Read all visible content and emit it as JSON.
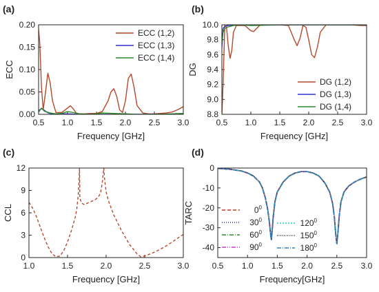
{
  "chart_data": [
    {
      "panel_label": "(a)",
      "type": "line",
      "xlabel": "Frequency [GHz]",
      "ylabel": "ECC",
      "xlim": [
        0.5,
        3.0
      ],
      "ylim": [
        0,
        0.2
      ],
      "xticks": [
        "0.5",
        "1.0",
        "1.5",
        "2.0",
        "2.5",
        "3.0"
      ],
      "yticks": [
        "0.00",
        "0.05",
        "0.10",
        "0.15",
        "0.20"
      ],
      "legend": "top-right",
      "series": [
        {
          "name": "ECC (1,2)",
          "color": "#b5482c",
          "x": [
            0.5,
            0.52,
            0.55,
            0.58,
            0.62,
            0.66,
            0.7,
            0.74,
            0.8,
            0.9,
            1.0,
            1.05,
            1.1,
            1.15,
            1.2,
            1.3,
            1.4,
            1.5,
            1.6,
            1.7,
            1.75,
            1.8,
            1.85,
            1.9,
            1.95,
            2.0,
            2.05,
            2.1,
            2.15,
            2.2,
            2.3,
            2.4,
            2.5,
            2.6,
            2.7,
            2.8,
            2.9,
            3.0
          ],
          "y": [
            0.19,
            0.16,
            0.06,
            0.01,
            0.05,
            0.092,
            0.07,
            0.03,
            0.004,
            0.004,
            0.014,
            0.019,
            0.012,
            0.003,
            0.001,
            0.001,
            0.002,
            0.002,
            0.006,
            0.03,
            0.05,
            0.057,
            0.04,
            0.01,
            0.004,
            0.03,
            0.08,
            0.09,
            0.06,
            0.02,
            0.003,
            0.001,
            0.001,
            0.002,
            0.003,
            0.005,
            0.01,
            0.017
          ]
        },
        {
          "name": "ECC (1,3)",
          "color": "#3030d0",
          "x": [
            0.5,
            0.55,
            0.6,
            0.65,
            0.7,
            0.8,
            1.0,
            1.2,
            1.5,
            2.0,
            2.5,
            3.0
          ],
          "y": [
            0.008,
            0.013,
            0.009,
            0.004,
            0.002,
            0.001,
            0.001,
            0.0,
            0.0,
            0.0,
            0.0,
            0.0
          ]
        },
        {
          "name": "ECC (1,4)",
          "color": "#2a8a2a",
          "x": [
            0.5,
            0.55,
            0.6,
            0.65,
            0.7,
            0.8,
            0.9,
            1.0,
            1.1,
            1.2,
            1.4,
            1.5,
            1.6,
            1.8,
            2.0,
            2.2,
            2.5,
            2.8,
            3.0
          ],
          "y": [
            0.005,
            0.014,
            0.007,
            0.005,
            0.003,
            0.001,
            0.002,
            0.006,
            0.004,
            0.001,
            0.0,
            0.001,
            0.003,
            0.002,
            0.001,
            0.0,
            0.0,
            0.001,
            0.002
          ]
        }
      ]
    },
    {
      "panel_label": "(b)",
      "type": "line",
      "xlabel": "Frequency [GHz]",
      "ylabel": "DG",
      "xlim": [
        0.5,
        3.0
      ],
      "ylim": [
        8.8,
        10.0
      ],
      "xticks": [
        "0.5",
        "1.0",
        "1.5",
        "2.0",
        "2.5",
        "3.0"
      ],
      "yticks": [
        "8.8",
        "9.0",
        "9.2",
        "9.4",
        "9.6",
        "9.8",
        "10.0"
      ],
      "legend": "bottom-right",
      "series": [
        {
          "name": "DG (1,2)",
          "color": "#b5482c",
          "x": [
            0.5,
            0.52,
            0.55,
            0.58,
            0.61,
            0.64,
            0.67,
            0.7,
            0.75,
            0.8,
            0.9,
            1.0,
            1.05,
            1.1,
            1.15,
            1.2,
            1.3,
            1.5,
            1.65,
            1.75,
            1.8,
            1.85,
            1.9,
            1.95,
            2.0,
            2.05,
            2.1,
            2.15,
            2.2,
            2.3,
            2.5,
            2.7,
            2.9,
            3.0
          ],
          "y": [
            8.8,
            9.2,
            9.99,
            9.97,
            9.72,
            9.55,
            9.65,
            9.9,
            9.99,
            9.99,
            9.99,
            9.92,
            9.91,
            9.95,
            9.99,
            10.0,
            10.0,
            10.0,
            9.99,
            9.8,
            9.72,
            9.82,
            9.99,
            9.97,
            9.8,
            9.6,
            9.56,
            9.7,
            9.9,
            10.0,
            10.0,
            10.0,
            9.99,
            9.99
          ]
        },
        {
          "name": "DG (1,3)",
          "color": "#3030d0",
          "x": [
            0.5,
            0.52,
            0.55,
            0.6,
            0.7,
            0.8,
            1.0,
            1.5,
            2.0,
            2.5,
            3.0
          ],
          "y": [
            9.7,
            9.95,
            9.98,
            9.99,
            10.0,
            10.0,
            10.0,
            10.0,
            10.0,
            10.0,
            10.0
          ]
        },
        {
          "name": "DG (1,4)",
          "color": "#2a8a2a",
          "x": [
            0.5,
            0.52,
            0.55,
            0.6,
            0.7,
            0.8,
            1.0,
            1.5,
            2.0,
            2.5,
            3.0
          ],
          "y": [
            9.75,
            9.9,
            9.95,
            9.97,
            9.99,
            10.0,
            9.99,
            10.0,
            10.0,
            10.0,
            10.0
          ]
        }
      ]
    },
    {
      "panel_label": "(c)",
      "type": "line",
      "xlabel": "Frequency [GHz]",
      "ylabel": "CCL",
      "xlim": [
        1.0,
        3.0
      ],
      "ylim": [
        0,
        12
      ],
      "xticks": [
        "1.0",
        "1.5",
        "2.0",
        "2.5",
        "3.0"
      ],
      "yticks": [
        "0",
        "3",
        "6",
        "9",
        "12"
      ],
      "series": [
        {
          "color": "#b5482c",
          "dash": "4,3",
          "x": [
            1.0,
            1.05,
            1.1,
            1.15,
            1.2,
            1.25,
            1.3,
            1.35,
            1.4,
            1.45,
            1.5,
            1.55,
            1.6,
            1.62,
            1.64,
            1.655,
            1.66,
            1.68,
            1.72,
            1.76,
            1.8,
            1.85,
            1.9,
            1.93,
            1.95,
            1.97,
            1.98,
            2.0,
            2.03,
            2.1,
            2.2,
            2.3,
            2.4,
            2.45,
            2.5,
            2.6,
            2.7,
            2.8,
            2.9,
            3.0
          ],
          "y": [
            7.4,
            6.6,
            5.4,
            4.0,
            2.6,
            1.4,
            0.5,
            0.1,
            0.2,
            0.9,
            2.1,
            3.6,
            5.4,
            6.5,
            8.5,
            12.0,
            8.0,
            7.3,
            7.1,
            7.3,
            7.5,
            7.7,
            8.1,
            8.8,
            10.0,
            12.0,
            10.5,
            8.8,
            7.6,
            5.7,
            3.6,
            1.8,
            0.5,
            0.1,
            0.2,
            0.6,
            1.1,
            1.7,
            2.4,
            3.1
          ]
        }
      ]
    },
    {
      "panel_label": "(d)",
      "type": "line",
      "xlabel": "Frequency[GHz]",
      "ylabel": "TARC",
      "xlim": [
        0.5,
        3.0
      ],
      "ylim": [
        -45,
        0
      ],
      "xticks": [
        "0.5",
        "1.0",
        "1.5",
        "2.0",
        "2.5",
        "3.0"
      ],
      "yticks": [
        "0",
        "-10",
        "-20",
        "-30",
        "-40"
      ],
      "legend": "bottom-left",
      "base_curve": {
        "x": [
          0.5,
          0.7,
          0.9,
          1.0,
          1.1,
          1.2,
          1.25,
          1.3,
          1.34,
          1.37,
          1.39,
          1.4,
          1.41,
          1.43,
          1.46,
          1.5,
          1.6,
          1.7,
          1.8,
          1.9,
          2.0,
          2.1,
          2.2,
          2.3,
          2.38,
          2.43,
          2.46,
          2.48,
          2.5,
          2.52,
          2.54,
          2.57,
          2.62,
          2.7,
          2.8,
          2.9,
          3.0
        ],
        "y": [
          -0.2,
          -0.6,
          -1.5,
          -2.5,
          -4.0,
          -7.0,
          -10.0,
          -15.0,
          -21.0,
          -28.0,
          -34.0,
          -36.0,
          -33.0,
          -25.0,
          -17.0,
          -12.0,
          -7.0,
          -4.0,
          -2.5,
          -1.8,
          -1.8,
          -2.5,
          -4.0,
          -7.5,
          -12.0,
          -18.0,
          -25.0,
          -33.0,
          -38.0,
          -32.0,
          -24.0,
          -17.0,
          -12.0,
          -9.0,
          -7.0,
          -5.5,
          -4.5
        ]
      },
      "series": [
        {
          "name": "0°",
          "label_num": "0",
          "label_sup": "0",
          "color": "#c0392b",
          "dash": "5,3",
          "width": 2
        },
        {
          "name": "30°",
          "label_num": "30",
          "label_sup": "0",
          "color": "#1f2a80",
          "dash": "1,2",
          "width": 1.6
        },
        {
          "name": "60°",
          "label_num": "60",
          "label_sup": "0",
          "color": "#2a8a2a",
          "dash": "6,2,1,2",
          "width": 1.6
        },
        {
          "name": "90°",
          "label_num": "90",
          "label_sup": "0",
          "color": "#cc33cc",
          "dash": "6,2,1,2,1,2",
          "width": 1.6
        },
        {
          "name": "120°",
          "label_num": "120",
          "label_sup": "0",
          "color": "#22c4c4",
          "dash": "2,2",
          "width": 1.6
        },
        {
          "name": "150°",
          "label_num": "150",
          "label_sup": "0",
          "color": "#333333",
          "dash": "1,1.5",
          "width": 1.6
        },
        {
          "name": "180°",
          "label_num": "180",
          "label_sup": "0",
          "color": "#2f7fbf",
          "dash": "6,2,1,2",
          "width": 1.6
        }
      ]
    }
  ]
}
